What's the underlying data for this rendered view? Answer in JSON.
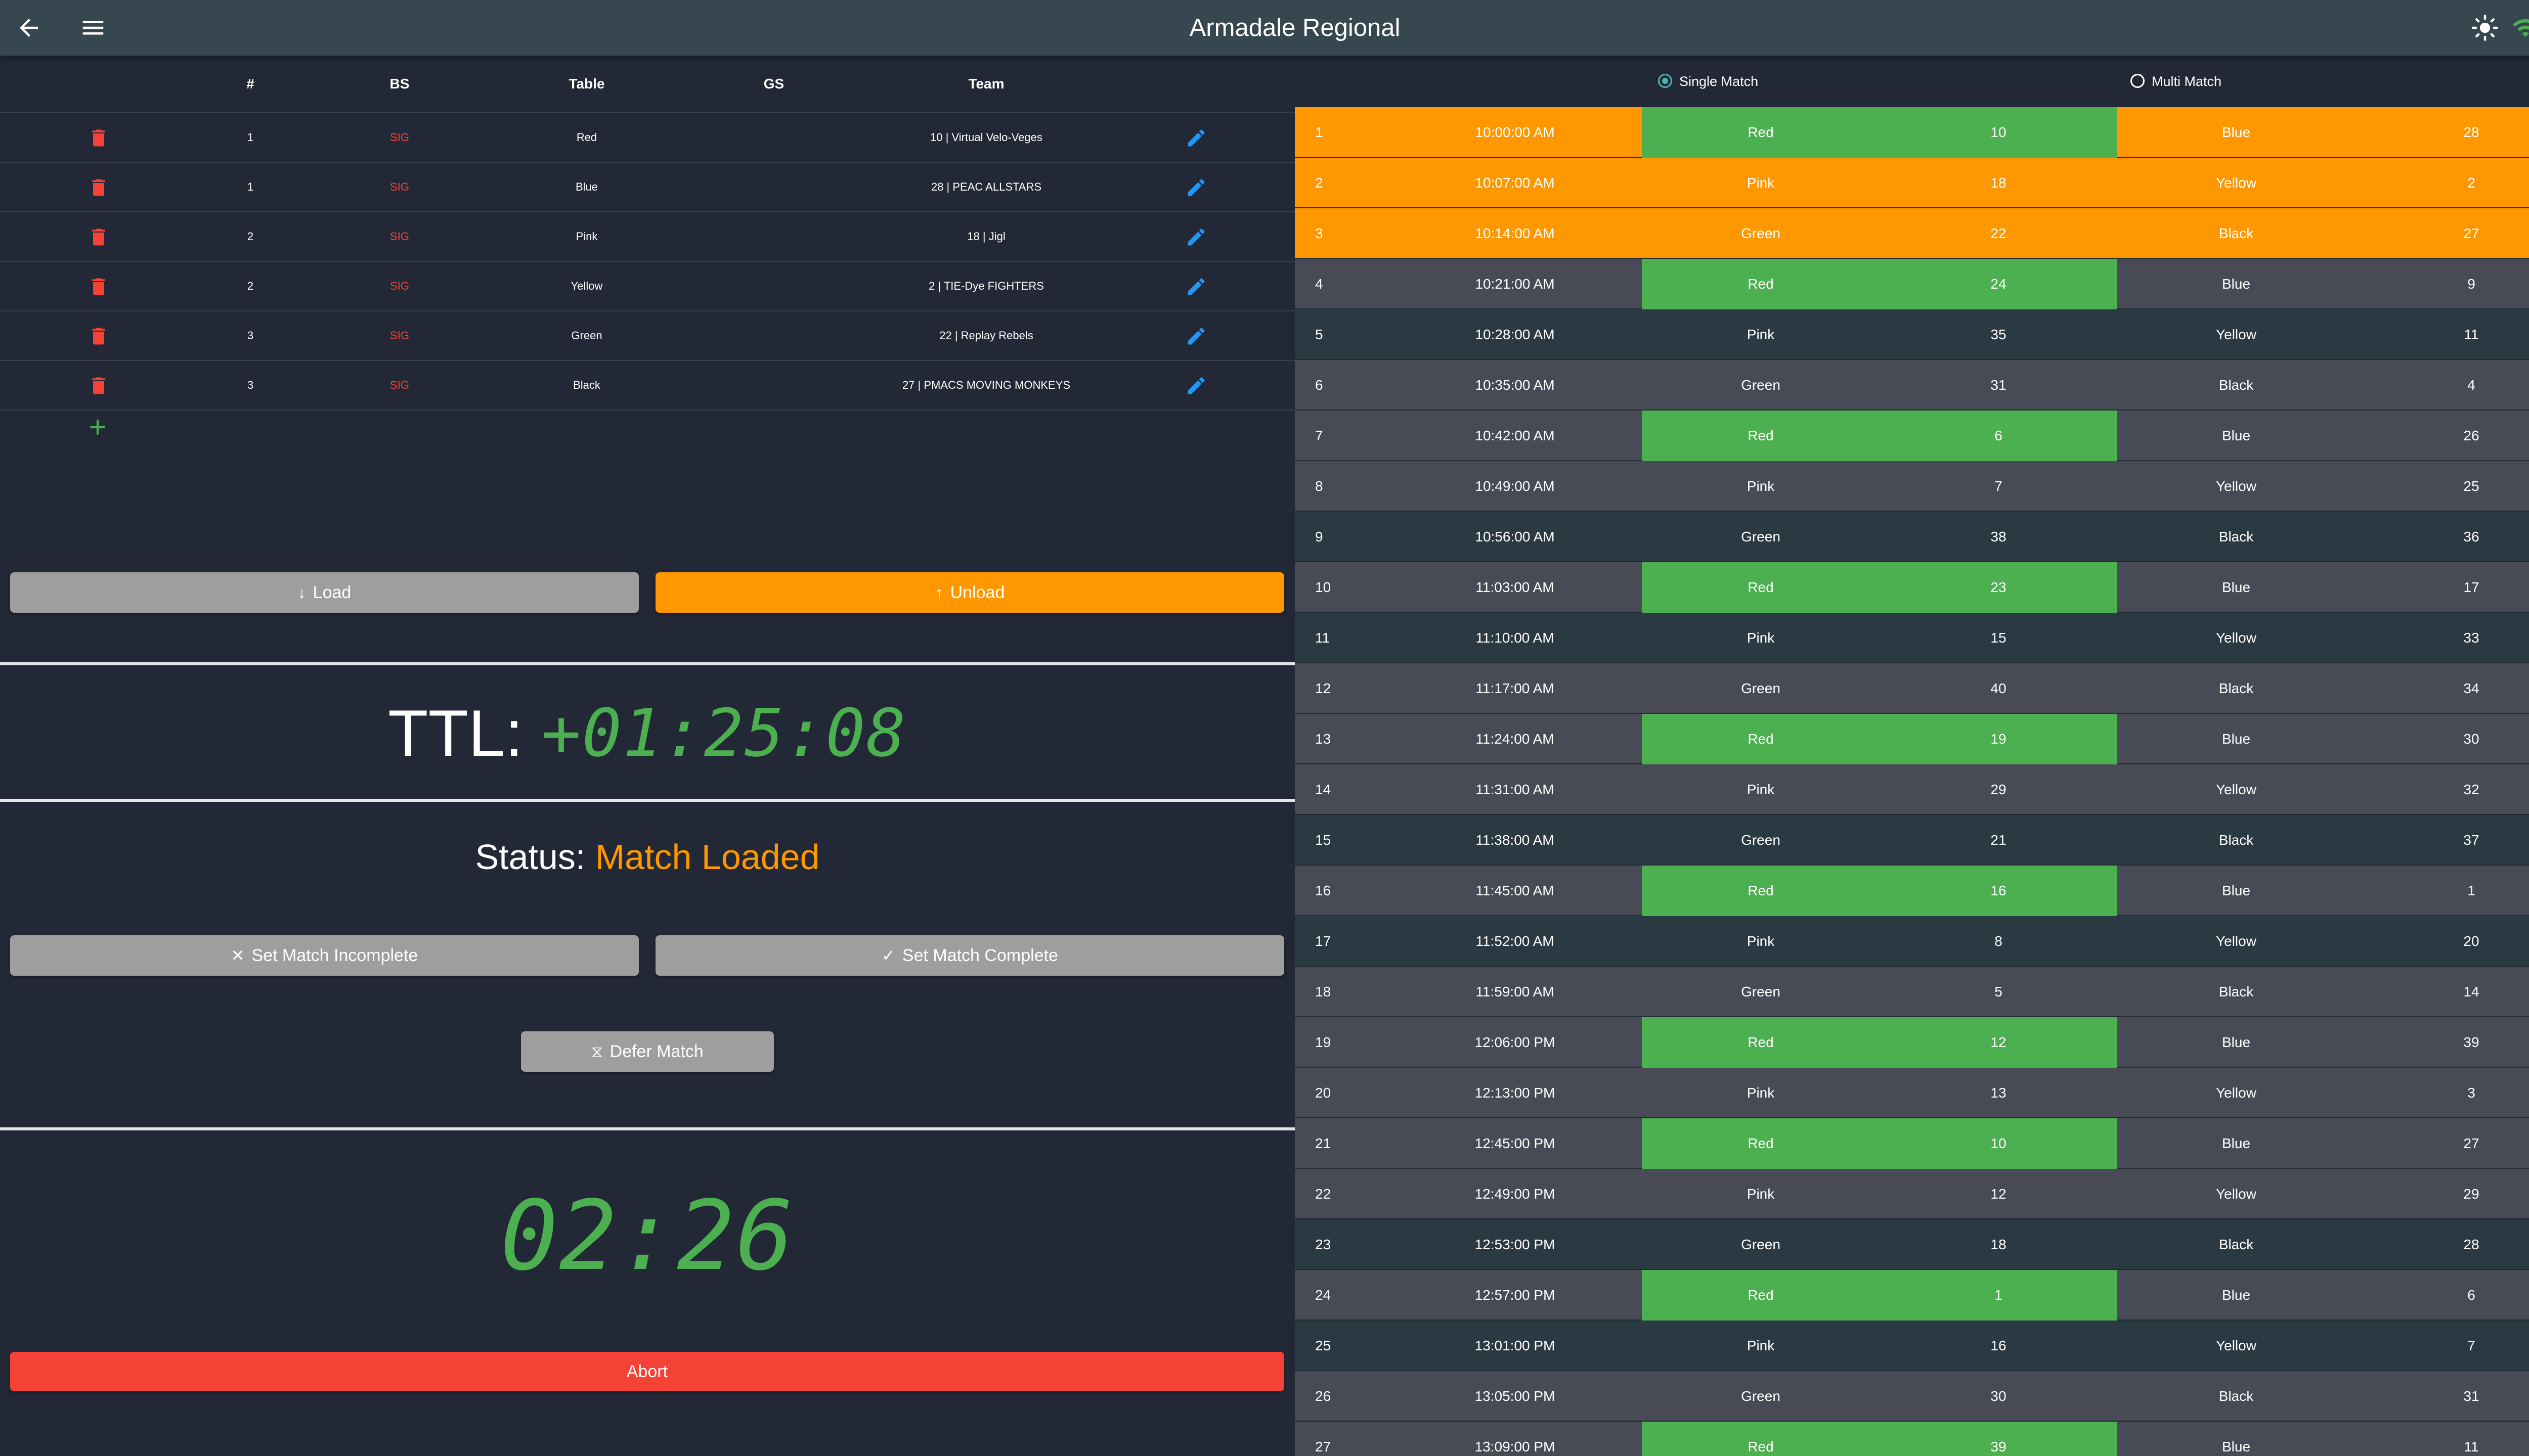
{
  "header": {
    "title": "Armadale Regional"
  },
  "teams_table": {
    "columns": {
      "num": "#",
      "bs": "BS",
      "table": "Table",
      "gs": "GS",
      "team": "Team"
    },
    "rows": [
      {
        "num": "1",
        "bs": "SIG",
        "table": "Red",
        "gs": "",
        "team": "10 | Virtual Velo-Veges"
      },
      {
        "num": "1",
        "bs": "SIG",
        "table": "Blue",
        "gs": "",
        "team": "28 | PEAC ALLSTARS"
      },
      {
        "num": "2",
        "bs": "SIG",
        "table": "Pink",
        "gs": "",
        "team": "18 | Jigl"
      },
      {
        "num": "2",
        "bs": "SIG",
        "table": "Yellow",
        "gs": "",
        "team": "2 | TIE-Dye FIGHTERS"
      },
      {
        "num": "3",
        "bs": "SIG",
        "table": "Green",
        "gs": "",
        "team": "22 | Replay Rebels"
      },
      {
        "num": "3",
        "bs": "SIG",
        "table": "Black",
        "gs": "",
        "team": "27 | PMACS MOVING MONKEYS"
      }
    ]
  },
  "controls": {
    "load_label": "Load",
    "unload_label": "Unload",
    "ttl_label": "TTL:",
    "ttl_value": "+01:25:08",
    "status_label": "Status:",
    "status_value": "Match Loaded",
    "incomplete_label": "Set Match Incomplete",
    "complete_label": "Set Match Complete",
    "defer_label": "Defer Match",
    "timer": "02:26",
    "abort_label": "Abort"
  },
  "schedule": {
    "modes": {
      "single": "Single Match",
      "multi": "Multi Match",
      "selected": "single"
    },
    "rows": [
      {
        "n": "1",
        "time": "10:00:00 AM",
        "t1": "Red",
        "s1": "10",
        "t2": "Blue",
        "s2": "28",
        "state": "loaded"
      },
      {
        "n": "2",
        "time": "10:07:00 AM",
        "t1": "Pink",
        "s1": "18",
        "t2": "Yellow",
        "s2": "2",
        "state": "loaded"
      },
      {
        "n": "3",
        "time": "10:14:00 AM",
        "t1": "Green",
        "s1": "22",
        "t2": "Black",
        "s2": "27",
        "state": "loaded"
      },
      {
        "n": "4",
        "time": "10:21:00 AM",
        "t1": "Red",
        "s1": "24",
        "t2": "Blue",
        "s2": "9",
        "state": ""
      },
      {
        "n": "5",
        "time": "10:28:00 AM",
        "t1": "Pink",
        "s1": "35",
        "t2": "Yellow",
        "s2": "11",
        "state": ""
      },
      {
        "n": "6",
        "time": "10:35:00 AM",
        "t1": "Green",
        "s1": "31",
        "t2": "Black",
        "s2": "4",
        "state": ""
      },
      {
        "n": "7",
        "time": "10:42:00 AM",
        "t1": "Red",
        "s1": "6",
        "t2": "Blue",
        "s2": "26",
        "state": ""
      },
      {
        "n": "8",
        "time": "10:49:00 AM",
        "t1": "Pink",
        "s1": "7",
        "t2": "Yellow",
        "s2": "25",
        "state": ""
      },
      {
        "n": "9",
        "time": "10:56:00 AM",
        "t1": "Green",
        "s1": "38",
        "t2": "Black",
        "s2": "36",
        "state": ""
      },
      {
        "n": "10",
        "time": "11:03:00 AM",
        "t1": "Red",
        "s1": "23",
        "t2": "Blue",
        "s2": "17",
        "state": ""
      },
      {
        "n": "11",
        "time": "11:10:00 AM",
        "t1": "Pink",
        "s1": "15",
        "t2": "Yellow",
        "s2": "33",
        "state": ""
      },
      {
        "n": "12",
        "time": "11:17:00 AM",
        "t1": "Green",
        "s1": "40",
        "t2": "Black",
        "s2": "34",
        "state": ""
      },
      {
        "n": "13",
        "time": "11:24:00 AM",
        "t1": "Red",
        "s1": "19",
        "t2": "Blue",
        "s2": "30",
        "state": ""
      },
      {
        "n": "14",
        "time": "11:31:00 AM",
        "t1": "Pink",
        "s1": "29",
        "t2": "Yellow",
        "s2": "32",
        "state": ""
      },
      {
        "n": "15",
        "time": "11:38:00 AM",
        "t1": "Green",
        "s1": "21",
        "t2": "Black",
        "s2": "37",
        "state": ""
      },
      {
        "n": "16",
        "time": "11:45:00 AM",
        "t1": "Red",
        "s1": "16",
        "t2": "Blue",
        "s2": "1",
        "state": ""
      },
      {
        "n": "17",
        "time": "11:52:00 AM",
        "t1": "Pink",
        "s1": "8",
        "t2": "Yellow",
        "s2": "20",
        "state": ""
      },
      {
        "n": "18",
        "time": "11:59:00 AM",
        "t1": "Green",
        "s1": "5",
        "t2": "Black",
        "s2": "14",
        "state": ""
      },
      {
        "n": "19",
        "time": "12:06:00 PM",
        "t1": "Red",
        "s1": "12",
        "t2": "Blue",
        "s2": "39",
        "state": ""
      },
      {
        "n": "20",
        "time": "12:13:00 PM",
        "t1": "Pink",
        "s1": "13",
        "t2": "Yellow",
        "s2": "3",
        "state": ""
      },
      {
        "n": "21",
        "time": "12:45:00 PM",
        "t1": "Red",
        "s1": "10",
        "t2": "Blue",
        "s2": "27",
        "state": ""
      },
      {
        "n": "22",
        "time": "12:49:00 PM",
        "t1": "Pink",
        "s1": "12",
        "t2": "Yellow",
        "s2": "29",
        "state": ""
      },
      {
        "n": "23",
        "time": "12:53:00 PM",
        "t1": "Green",
        "s1": "18",
        "t2": "Black",
        "s2": "28",
        "state": ""
      },
      {
        "n": "24",
        "time": "12:57:00 PM",
        "t1": "Red",
        "s1": "1",
        "t2": "Blue",
        "s2": "6",
        "state": ""
      },
      {
        "n": "25",
        "time": "13:01:00 PM",
        "t1": "Pink",
        "s1": "16",
        "t2": "Yellow",
        "s2": "7",
        "state": ""
      },
      {
        "n": "26",
        "time": "13:05:00 PM",
        "t1": "Green",
        "s1": "30",
        "t2": "Black",
        "s2": "31",
        "state": ""
      },
      {
        "n": "27",
        "time": "13:09:00 PM",
        "t1": "Red",
        "s1": "39",
        "t2": "Blue",
        "s2": "11",
        "state": ""
      }
    ]
  },
  "icons": {
    "back": "arrow-back-icon",
    "menu": "menu-icon",
    "brightness": "brightness-icon",
    "wifi": "wifi-icon",
    "account": "account-icon",
    "delete": "delete-icon",
    "edit": "edit-icon",
    "add": "add-icon"
  },
  "colors": {
    "accent_orange": "#ff9800",
    "accent_green": "#4caf50",
    "danger_red": "#f44336",
    "edit_blue": "#2196f3",
    "topbar": "#37474f",
    "background": "#232836"
  }
}
